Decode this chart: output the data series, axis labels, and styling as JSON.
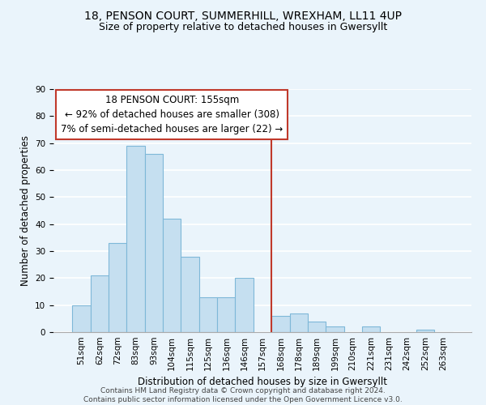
{
  "title": "18, PENSON COURT, SUMMERHILL, WREXHAM, LL11 4UP",
  "subtitle": "Size of property relative to detached houses in Gwersyllt",
  "xlabel": "Distribution of detached houses by size in Gwersyllt",
  "ylabel": "Number of detached properties",
  "footer_lines": [
    "Contains HM Land Registry data © Crown copyright and database right 2024.",
    "Contains public sector information licensed under the Open Government Licence v3.0."
  ],
  "bin_labels": [
    "51sqm",
    "62sqm",
    "72sqm",
    "83sqm",
    "93sqm",
    "104sqm",
    "115sqm",
    "125sqm",
    "136sqm",
    "146sqm",
    "157sqm",
    "168sqm",
    "178sqm",
    "189sqm",
    "199sqm",
    "210sqm",
    "221sqm",
    "231sqm",
    "242sqm",
    "252sqm",
    "263sqm"
  ],
  "bar_values": [
    10,
    21,
    33,
    69,
    66,
    42,
    28,
    13,
    13,
    20,
    0,
    6,
    7,
    4,
    2,
    0,
    2,
    0,
    0,
    1,
    0
  ],
  "bar_color": "#c5dff0",
  "bar_edge_color": "#7eb8d8",
  "vline_x_index": 10.5,
  "vline_color": "#c0392b",
  "annotation_box": {
    "text_line1": "18 PENSON COURT: 155sqm",
    "text_line2": "← 92% of detached houses are smaller (308)",
    "text_line3": "7% of semi-detached houses are larger (22) →",
    "box_color": "#ffffff",
    "border_color": "#c0392b",
    "text_fontsize": 8.5
  },
  "ylim": [
    0,
    90
  ],
  "yticks": [
    0,
    10,
    20,
    30,
    40,
    50,
    60,
    70,
    80,
    90
  ],
  "background_color": "#eaf4fb",
  "grid_color": "#ffffff",
  "title_fontsize": 10,
  "subtitle_fontsize": 9,
  "axis_label_fontsize": 8.5,
  "tick_fontsize": 7.5,
  "footer_fontsize": 6.5
}
